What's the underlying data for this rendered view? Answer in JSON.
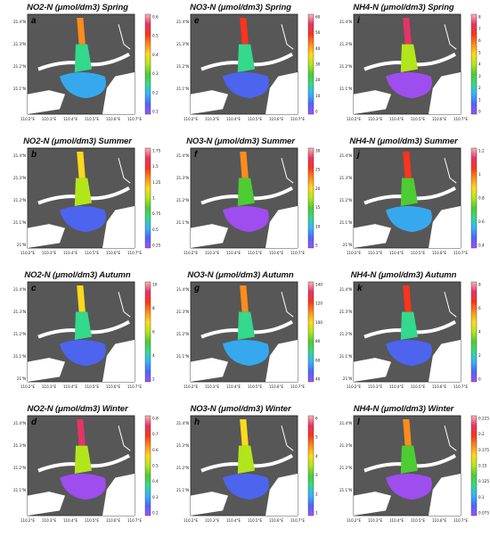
{
  "colors": {
    "map_background": "#575757",
    "land": "#ffffff",
    "frame": "#222222"
  },
  "colormap": [
    "#a64dff",
    "#4d66ff",
    "#33b3ff",
    "#33d98c",
    "#4dcc33",
    "#b3e61a",
    "#ffd91a",
    "#ff8c1a",
    "#ff331a",
    "#e63366",
    "#ffb3b3"
  ],
  "axes": {
    "x_ticks": [
      "110.2°E",
      "110.3°E",
      "110.4°E",
      "110.5°E",
      "110.6°E",
      "110.7°E"
    ],
    "y_ticks": [
      "21.4°N",
      "21.3°N",
      "21.2°N",
      "21.1°N",
      "21°N"
    ]
  },
  "panels": [
    {
      "id": "a",
      "letter": "a",
      "title": "NO2-N (μmol/dm3)  Spring",
      "colorbar_ticks": [
        "0.6",
        "0.5",
        "0.4",
        "0.3",
        "0.2",
        "0.1"
      ],
      "show_lat_21": false
    },
    {
      "id": "e",
      "letter": "e",
      "title": "NO3-N (μmol/dm3)  Spring",
      "colorbar_ticks": [
        "60",
        "50",
        "40",
        "30",
        "20",
        "10",
        "0"
      ],
      "show_lat_21": false
    },
    {
      "id": "i",
      "letter": "i",
      "title": "NH4-N (μmol/dm3)  Spring",
      "colorbar_ticks": [
        "8",
        "7",
        "6",
        "5",
        "4",
        "3",
        "2",
        "1",
        "0"
      ],
      "show_lat_21": false
    },
    {
      "id": "b",
      "letter": "b",
      "title": "NO2-N (μmol/dm3)  Summer",
      "colorbar_ticks": [
        "1.75",
        "1.5",
        "1.25",
        "1",
        "0.75",
        "0.5",
        "0.25"
      ],
      "show_lat_21": true
    },
    {
      "id": "f",
      "letter": "f",
      "title": "NO3-N (μmol/dm3)  Summer",
      "colorbar_ticks": [
        "30",
        "25",
        "20",
        "15",
        "10",
        "5"
      ],
      "show_lat_21": false
    },
    {
      "id": "j",
      "letter": "j",
      "title": "NH4-N (μmol/dm3)  Summer",
      "colorbar_ticks": [
        "1.2",
        "1",
        "0.8",
        "0.6",
        "0.4"
      ],
      "show_lat_21": true
    },
    {
      "id": "c",
      "letter": "c",
      "title": "NO2-N (μmol/dm3)  Autumn",
      "colorbar_ticks": [
        "10",
        "8",
        "6",
        "4",
        "2"
      ],
      "show_lat_21": true
    },
    {
      "id": "g",
      "letter": "g",
      "title": "NO3-N (μmol/dm3)  Autumn",
      "colorbar_ticks": [
        "140",
        "120",
        "100",
        "80",
        "60",
        "40"
      ],
      "show_lat_21": false
    },
    {
      "id": "k",
      "letter": "k",
      "title": "NH4-N (μmol/dm3)  Autumn",
      "colorbar_ticks": [
        "8",
        "6",
        "4",
        "2",
        "0"
      ],
      "show_lat_21": true
    },
    {
      "id": "d",
      "letter": "d",
      "title": "NO2-N (μmol/dm3)  Winter",
      "colorbar_ticks": [
        "0.8",
        "0.7",
        "0.6",
        "0.5",
        "0.4",
        "0.3",
        "0.2"
      ],
      "show_lat_21": false
    },
    {
      "id": "h",
      "letter": "h",
      "title": "NO3-N (μmol/dm3)  Winter",
      "colorbar_ticks": [
        "6",
        "5",
        "4",
        "3",
        "2",
        "1"
      ],
      "show_lat_21": false
    },
    {
      "id": "l",
      "letter": "l",
      "title": "NH4-N (μmol/dm3)  Winter",
      "colorbar_ticks": [
        "0.225",
        "0.2",
        "0.175",
        "0.15",
        "0.125",
        "0.1",
        "0.075"
      ],
      "show_lat_21": false
    }
  ]
}
